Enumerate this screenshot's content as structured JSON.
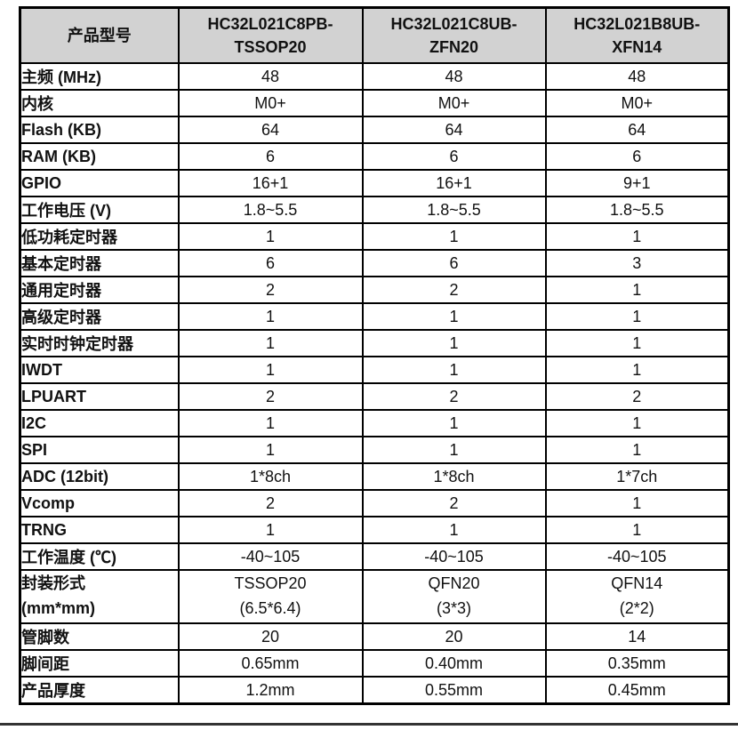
{
  "page": {
    "bottom_rule_color": "#333333"
  },
  "table": {
    "header_bg": "#d2d2d2",
    "corner_label": "产品型号",
    "columns": [
      "HC32L021C8PB-\nTSSOP20",
      "HC32L021C8UB-\nZFN20",
      "HC32L021B8UB-\nXFN14"
    ],
    "rows": [
      {
        "label": "主频 (MHz)",
        "values": [
          "48",
          "48",
          "48"
        ]
      },
      {
        "label": "内核",
        "values": [
          "M0+",
          "M0+",
          "M0+"
        ]
      },
      {
        "label": "Flash (KB)",
        "values": [
          "64",
          "64",
          "64"
        ]
      },
      {
        "label": "RAM (KB)",
        "values": [
          "6",
          "6",
          "6"
        ]
      },
      {
        "label": "GPIO",
        "values": [
          "16+1",
          "16+1",
          "9+1"
        ]
      },
      {
        "label": "工作电压 (V)",
        "values": [
          "1.8~5.5",
          "1.8~5.5",
          "1.8~5.5"
        ]
      },
      {
        "label": "低功耗定时器",
        "values": [
          "1",
          "1",
          "1"
        ]
      },
      {
        "label": "基本定时器",
        "values": [
          "6",
          "6",
          "3"
        ]
      },
      {
        "label": "通用定时器",
        "values": [
          "2",
          "2",
          "1"
        ]
      },
      {
        "label": "高级定时器",
        "values": [
          "1",
          "1",
          "1"
        ]
      },
      {
        "label": "实时时钟定时器",
        "values": [
          "1",
          "1",
          "1"
        ]
      },
      {
        "label": "IWDT",
        "values": [
          "1",
          "1",
          "1"
        ]
      },
      {
        "label": "LPUART",
        "values": [
          "2",
          "2",
          "2"
        ]
      },
      {
        "label": "I2C",
        "values": [
          "1",
          "1",
          "1"
        ]
      },
      {
        "label": "SPI",
        "values": [
          "1",
          "1",
          "1"
        ]
      },
      {
        "label": "ADC (12bit)",
        "values": [
          "1*8ch",
          "1*8ch",
          "1*7ch"
        ]
      },
      {
        "label": "Vcomp",
        "values": [
          "2",
          "2",
          "1"
        ]
      },
      {
        "label": "TRNG",
        "values": [
          "1",
          "1",
          "1"
        ]
      },
      {
        "label": "工作温度 (℃)",
        "values": [
          "-40~105",
          "-40~105",
          "-40~105"
        ]
      },
      {
        "label": "封装形式\n(mm*mm)",
        "values": [
          "TSSOP20\n(6.5*6.4)",
          "QFN20\n(3*3)",
          "QFN14\n(2*2)"
        ],
        "multiline": true
      },
      {
        "label": "管脚数",
        "values": [
          "20",
          "20",
          "14"
        ]
      },
      {
        "label": "脚间距",
        "values": [
          "0.65mm",
          "0.40mm",
          "0.35mm"
        ]
      },
      {
        "label": "产品厚度",
        "values": [
          "1.2mm",
          "0.55mm",
          "0.45mm"
        ]
      }
    ]
  }
}
